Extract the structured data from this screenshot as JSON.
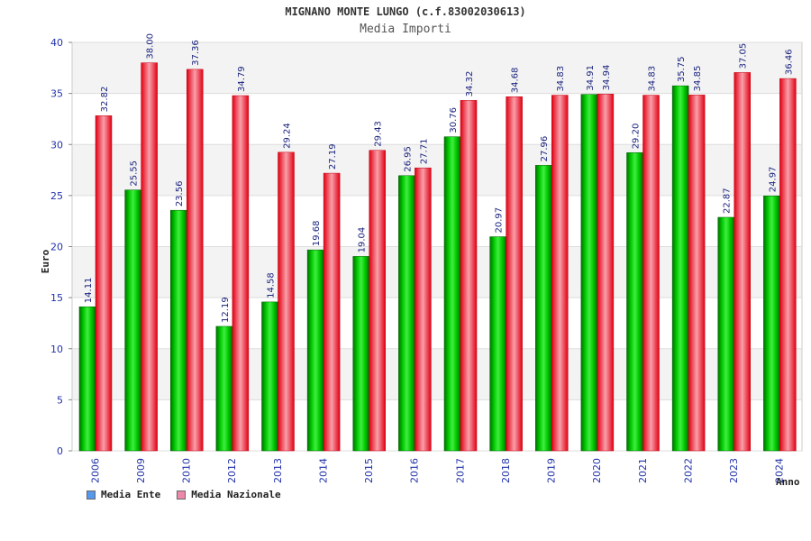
{
  "chart_data": {
    "type": "bar",
    "title": "MIGNANO MONTE LUNGO (c.f.83002030613)",
    "subtitle": "Media Importi",
    "xlabel": "Anno",
    "ylabel": "Euro",
    "ylim": [
      0,
      40
    ],
    "yticks": [
      0,
      5,
      10,
      15,
      20,
      25,
      30,
      35,
      40
    ],
    "categories": [
      "2006",
      "2009",
      "2010",
      "2012",
      "2013",
      "2014",
      "2015",
      "2016",
      "2017",
      "2018",
      "2019",
      "2020",
      "2021",
      "2022",
      "2023",
      "2024"
    ],
    "series": [
      {
        "name": "Media Ente",
        "color": "#00b000",
        "values": [
          14.11,
          25.55,
          23.56,
          12.19,
          14.58,
          19.68,
          19.04,
          26.95,
          30.76,
          20.97,
          27.96,
          34.91,
          29.2,
          35.75,
          22.87,
          24.97
        ],
        "labels": [
          "14.11",
          "25.55",
          "23.56",
          "12.19",
          "14.58",
          "19.68",
          "19.04",
          "26.95",
          "30.76",
          "20.97",
          "27.96",
          "34.91",
          "29.20",
          "35.75",
          "22.87",
          "24.97"
        ]
      },
      {
        "name": "Media Nazionale",
        "color": "#ee1c2e",
        "values": [
          32.82,
          38.0,
          37.36,
          34.79,
          29.24,
          27.19,
          29.43,
          27.71,
          34.32,
          34.68,
          34.83,
          34.94,
          34.83,
          34.85,
          37.05,
          36.46
        ],
        "labels": [
          "32.82",
          "38.00",
          "37.36",
          "34.79",
          "29.24",
          "27.19",
          "29.43",
          "27.71",
          "34.32",
          "34.68",
          "34.83",
          "34.94",
          "34.83",
          "34.85",
          "37.05",
          "36.46"
        ]
      }
    ],
    "legend": [
      {
        "label": "Media Ente",
        "color": "#5599ee"
      },
      {
        "label": "Media Nazionale",
        "color": "#ee88aa"
      }
    ],
    "legend_position": "bottom-left",
    "grid": true
  }
}
